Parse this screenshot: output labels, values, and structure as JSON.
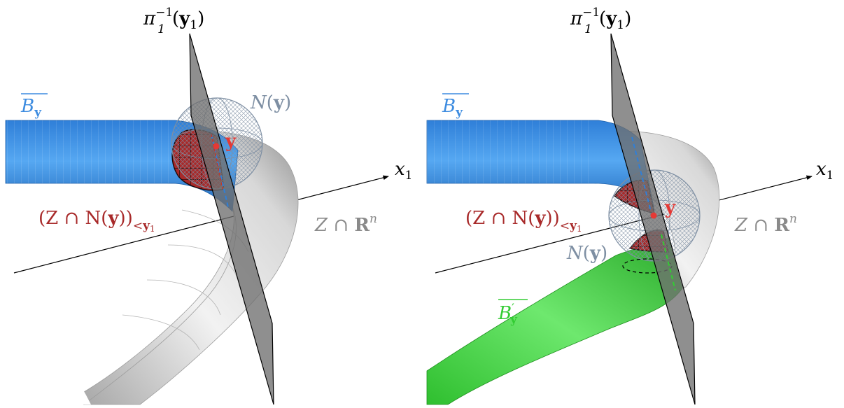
{
  "colors": {
    "blue": "#3d8ce0",
    "green": "#33cc33",
    "red": "#a82a2a",
    "gray_label": "#8a8a8a",
    "slate": "#7e8fa3",
    "plane": "#6f6f6f"
  },
  "panels": [
    {
      "plane_label": {
        "pi": "π",
        "sup": "−1",
        "sub": "1",
        "open": "(",
        "y": "y",
        "y_sub": "1",
        "close": ")"
      },
      "axis_label": {
        "x": "x",
        "sub": "1"
      },
      "neighborhood_label": {
        "N": "N",
        "open": "(",
        "y": "y",
        "close": ")"
      },
      "point_label": "y",
      "B_label": {
        "B": "B",
        "sub": "y"
      },
      "intersection_label": {
        "text": "(Z ∩ N(",
        "y": "y",
        "close": "))",
        "sub_lt": "<",
        "sub_y": "y",
        "sub_1": "1"
      },
      "Z_label": {
        "Z": "Z",
        "cap": " ∩ ",
        "R": "R",
        "sup": "n"
      }
    },
    {
      "plane_label": {
        "pi": "π",
        "sup": "−1",
        "sub": "1",
        "open": "(",
        "y": "y",
        "y_sub": "1",
        "close": ")"
      },
      "axis_label": {
        "x": "x",
        "sub": "1"
      },
      "neighborhood_label": {
        "N": "N",
        "open": "(",
        "y": "y",
        "close": ")"
      },
      "point_label": "y",
      "B_label": {
        "B": "B",
        "sub": "y"
      },
      "B_prime_label": {
        "B": "B",
        "prime": "′",
        "sub": "y"
      },
      "intersection_label": {
        "text": "(Z ∩ N(",
        "y": "y",
        "close": "))",
        "sub_lt": "<",
        "sub_y": "y",
        "sub_1": "1"
      },
      "Z_label": {
        "Z": "Z",
        "cap": " ∩ ",
        "R": "R",
        "sup": "n"
      }
    }
  ]
}
